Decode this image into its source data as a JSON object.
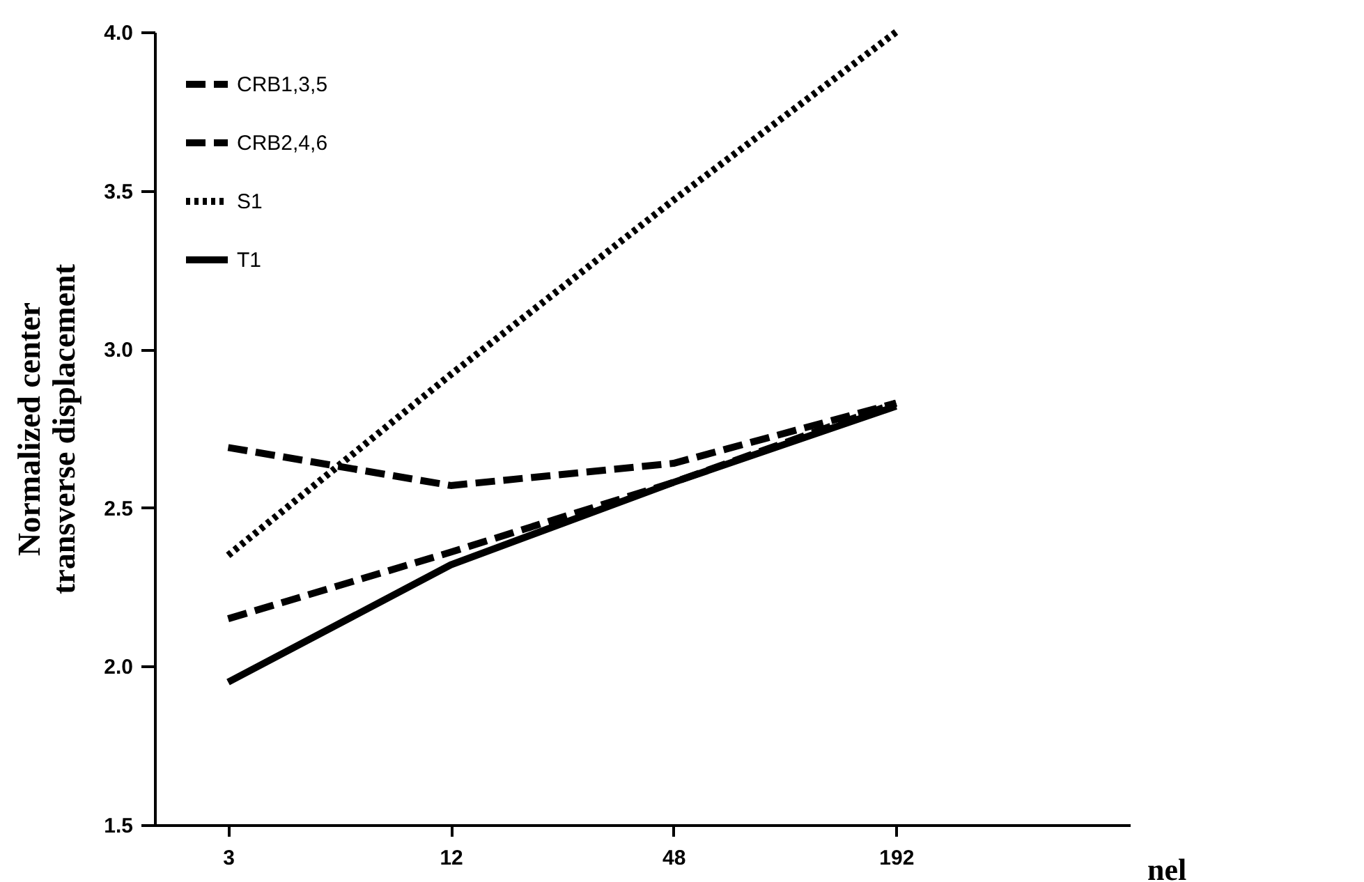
{
  "chart_data": {
    "type": "line",
    "xlabel": "nel",
    "ylabel": "Normalized center\ntransverse displacement",
    "categories": [
      "3",
      "12",
      "48",
      "192"
    ],
    "series": [
      {
        "name": "CRB1,3,5",
        "color": "#000000",
        "line_style": "dashed",
        "values": [
          2.15,
          2.36,
          2.58,
          2.83
        ]
      },
      {
        "name": "CRB2,4,6",
        "color": "#000000",
        "line_style": "dashed",
        "values": [
          2.69,
          2.57,
          2.64,
          2.83
        ]
      },
      {
        "name": "S1",
        "color": "#000000",
        "line_style": "dotted",
        "values": [
          2.35,
          2.92,
          3.47,
          4.0
        ]
      },
      {
        "name": "T1",
        "color": "#000000",
        "line_style": "solid",
        "values": [
          1.95,
          2.32,
          2.58,
          2.82
        ]
      }
    ],
    "ylim": [
      1.5,
      4.0
    ],
    "yticks": [
      1.5,
      {
        "value": 2.0,
        "label": "2.0"
      },
      2.5,
      {
        "value": 3.0,
        "label": "3.0"
      },
      3.5,
      {
        "value": 4.0,
        "label": "4.0"
      }
    ],
    "legend": "top left",
    "grid": false,
    "marker": "none"
  }
}
